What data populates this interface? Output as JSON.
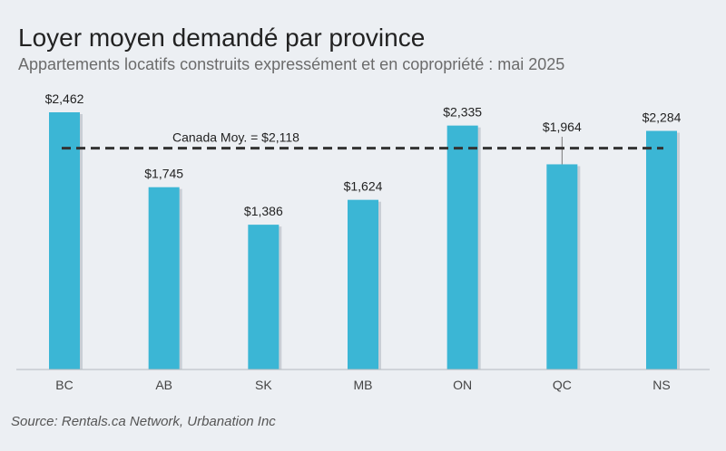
{
  "header": {
    "title": "Loyer moyen demandé par province",
    "subtitle": "Appartements locatifs construits expressément et en copropriété : mai 2025"
  },
  "footer": {
    "source": "Source: Rentals.ca Network, Urbanation Inc"
  },
  "chart_data": {
    "type": "bar",
    "title": "Loyer moyen demandé par province",
    "subtitle": "Appartements locatifs construits expressément et en copropriété : mai 2025",
    "categories": [
      "BC",
      "AB",
      "SK",
      "MB",
      "ON",
      "QC",
      "NS"
    ],
    "values": [
      2462,
      1745,
      1386,
      1624,
      2335,
      1964,
      2284
    ],
    "value_labels": [
      "$2,462",
      "$1,745",
      "$1,386",
      "$1,624",
      "$2,335",
      "$1,964",
      "$2,284"
    ],
    "reference_line": {
      "label": "Canada Moy. = $2,118",
      "value": 2118,
      "style": "dashed"
    },
    "ylim": [
      0,
      2462
    ],
    "xlabel": "",
    "ylabel": "",
    "grid": false,
    "colors": {
      "bar": "#3bb6d5",
      "reference": "#333333",
      "axis": "#b5b9bf"
    }
  }
}
